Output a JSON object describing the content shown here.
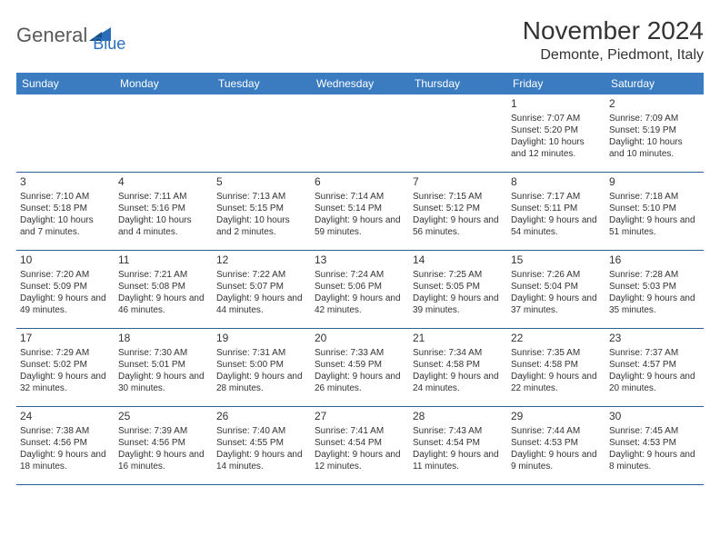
{
  "logo": {
    "text_general": "General",
    "text_blue": "Blue"
  },
  "title": "November 2024",
  "location": "Demonte, Piedmont, Italy",
  "colors": {
    "header_bg": "#3b7bbf",
    "header_text": "#ffffff",
    "cell_border": "#2f5e94",
    "text": "#333333",
    "logo_gray": "#58595b",
    "logo_blue": "#2a6ebb",
    "background": "#ffffff"
  },
  "layout": {
    "columns": 7,
    "rows": 5,
    "first_day_column_index": 5,
    "header_fontsize": 12,
    "daynum_fontsize": 12,
    "body_fontsize": 10,
    "title_fontsize": 28,
    "location_fontsize": 16
  },
  "weekdays": [
    "Sunday",
    "Monday",
    "Tuesday",
    "Wednesday",
    "Thursday",
    "Friday",
    "Saturday"
  ],
  "days": [
    {
      "n": "1",
      "sunrise": "Sunrise: 7:07 AM",
      "sunset": "Sunset: 5:20 PM",
      "daylight": "Daylight: 10 hours and 12 minutes."
    },
    {
      "n": "2",
      "sunrise": "Sunrise: 7:09 AM",
      "sunset": "Sunset: 5:19 PM",
      "daylight": "Daylight: 10 hours and 10 minutes."
    },
    {
      "n": "3",
      "sunrise": "Sunrise: 7:10 AM",
      "sunset": "Sunset: 5:18 PM",
      "daylight": "Daylight: 10 hours and 7 minutes."
    },
    {
      "n": "4",
      "sunrise": "Sunrise: 7:11 AM",
      "sunset": "Sunset: 5:16 PM",
      "daylight": "Daylight: 10 hours and 4 minutes."
    },
    {
      "n": "5",
      "sunrise": "Sunrise: 7:13 AM",
      "sunset": "Sunset: 5:15 PM",
      "daylight": "Daylight: 10 hours and 2 minutes."
    },
    {
      "n": "6",
      "sunrise": "Sunrise: 7:14 AM",
      "sunset": "Sunset: 5:14 PM",
      "daylight": "Daylight: 9 hours and 59 minutes."
    },
    {
      "n": "7",
      "sunrise": "Sunrise: 7:15 AM",
      "sunset": "Sunset: 5:12 PM",
      "daylight": "Daylight: 9 hours and 56 minutes."
    },
    {
      "n": "8",
      "sunrise": "Sunrise: 7:17 AM",
      "sunset": "Sunset: 5:11 PM",
      "daylight": "Daylight: 9 hours and 54 minutes."
    },
    {
      "n": "9",
      "sunrise": "Sunrise: 7:18 AM",
      "sunset": "Sunset: 5:10 PM",
      "daylight": "Daylight: 9 hours and 51 minutes."
    },
    {
      "n": "10",
      "sunrise": "Sunrise: 7:20 AM",
      "sunset": "Sunset: 5:09 PM",
      "daylight": "Daylight: 9 hours and 49 minutes."
    },
    {
      "n": "11",
      "sunrise": "Sunrise: 7:21 AM",
      "sunset": "Sunset: 5:08 PM",
      "daylight": "Daylight: 9 hours and 46 minutes."
    },
    {
      "n": "12",
      "sunrise": "Sunrise: 7:22 AM",
      "sunset": "Sunset: 5:07 PM",
      "daylight": "Daylight: 9 hours and 44 minutes."
    },
    {
      "n": "13",
      "sunrise": "Sunrise: 7:24 AM",
      "sunset": "Sunset: 5:06 PM",
      "daylight": "Daylight: 9 hours and 42 minutes."
    },
    {
      "n": "14",
      "sunrise": "Sunrise: 7:25 AM",
      "sunset": "Sunset: 5:05 PM",
      "daylight": "Daylight: 9 hours and 39 minutes."
    },
    {
      "n": "15",
      "sunrise": "Sunrise: 7:26 AM",
      "sunset": "Sunset: 5:04 PM",
      "daylight": "Daylight: 9 hours and 37 minutes."
    },
    {
      "n": "16",
      "sunrise": "Sunrise: 7:28 AM",
      "sunset": "Sunset: 5:03 PM",
      "daylight": "Daylight: 9 hours and 35 minutes."
    },
    {
      "n": "17",
      "sunrise": "Sunrise: 7:29 AM",
      "sunset": "Sunset: 5:02 PM",
      "daylight": "Daylight: 9 hours and 32 minutes."
    },
    {
      "n": "18",
      "sunrise": "Sunrise: 7:30 AM",
      "sunset": "Sunset: 5:01 PM",
      "daylight": "Daylight: 9 hours and 30 minutes."
    },
    {
      "n": "19",
      "sunrise": "Sunrise: 7:31 AM",
      "sunset": "Sunset: 5:00 PM",
      "daylight": "Daylight: 9 hours and 28 minutes."
    },
    {
      "n": "20",
      "sunrise": "Sunrise: 7:33 AM",
      "sunset": "Sunset: 4:59 PM",
      "daylight": "Daylight: 9 hours and 26 minutes."
    },
    {
      "n": "21",
      "sunrise": "Sunrise: 7:34 AM",
      "sunset": "Sunset: 4:58 PM",
      "daylight": "Daylight: 9 hours and 24 minutes."
    },
    {
      "n": "22",
      "sunrise": "Sunrise: 7:35 AM",
      "sunset": "Sunset: 4:58 PM",
      "daylight": "Daylight: 9 hours and 22 minutes."
    },
    {
      "n": "23",
      "sunrise": "Sunrise: 7:37 AM",
      "sunset": "Sunset: 4:57 PM",
      "daylight": "Daylight: 9 hours and 20 minutes."
    },
    {
      "n": "24",
      "sunrise": "Sunrise: 7:38 AM",
      "sunset": "Sunset: 4:56 PM",
      "daylight": "Daylight: 9 hours and 18 minutes."
    },
    {
      "n": "25",
      "sunrise": "Sunrise: 7:39 AM",
      "sunset": "Sunset: 4:56 PM",
      "daylight": "Daylight: 9 hours and 16 minutes."
    },
    {
      "n": "26",
      "sunrise": "Sunrise: 7:40 AM",
      "sunset": "Sunset: 4:55 PM",
      "daylight": "Daylight: 9 hours and 14 minutes."
    },
    {
      "n": "27",
      "sunrise": "Sunrise: 7:41 AM",
      "sunset": "Sunset: 4:54 PM",
      "daylight": "Daylight: 9 hours and 12 minutes."
    },
    {
      "n": "28",
      "sunrise": "Sunrise: 7:43 AM",
      "sunset": "Sunset: 4:54 PM",
      "daylight": "Daylight: 9 hours and 11 minutes."
    },
    {
      "n": "29",
      "sunrise": "Sunrise: 7:44 AM",
      "sunset": "Sunset: 4:53 PM",
      "daylight": "Daylight: 9 hours and 9 minutes."
    },
    {
      "n": "30",
      "sunrise": "Sunrise: 7:45 AM",
      "sunset": "Sunset: 4:53 PM",
      "daylight": "Daylight: 9 hours and 8 minutes."
    }
  ]
}
